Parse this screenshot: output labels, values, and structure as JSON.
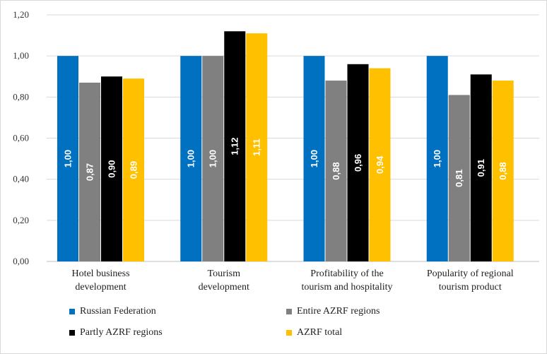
{
  "chart_data": {
    "type": "bar",
    "title": "",
    "xlabel": "",
    "ylabel": "",
    "ylim": [
      0,
      1.2
    ],
    "yticks": [
      "0,00",
      "0,20",
      "0,40",
      "0,60",
      "0,80",
      "1,00",
      "1,20"
    ],
    "grid": true,
    "legend_position": "bottom",
    "categories": [
      [
        "Hotel business",
        "development"
      ],
      [
        "Tourism",
        "development"
      ],
      [
        "Profitability of the",
        "tourism and hospitality"
      ],
      [
        "Popularity of regional",
        "tourism product"
      ]
    ],
    "series": [
      {
        "name": "Russian Federation",
        "color": "#0070c0",
        "values": [
          1.0,
          1.0,
          1.0,
          1.0
        ],
        "labels": [
          "1,00",
          "1,00",
          "1,00",
          "1,00"
        ]
      },
      {
        "name": "Entire AZRF regions",
        "color": "#808080",
        "values": [
          0.87,
          1.0,
          0.88,
          0.81
        ],
        "labels": [
          "0,87",
          "1,00",
          "0,88",
          "0,81"
        ]
      },
      {
        "name": "Partly AZRF regions",
        "color": "#000000",
        "values": [
          0.9,
          1.12,
          0.96,
          0.91
        ],
        "labels": [
          "0,90",
          "1,12",
          "0,96",
          "0,91"
        ]
      },
      {
        "name": "AZRF total",
        "color": "#ffc000",
        "values": [
          0.89,
          1.11,
          0.94,
          0.88
        ],
        "labels": [
          "0,89",
          "1,11",
          "0,94",
          "0,88"
        ]
      }
    ]
  }
}
